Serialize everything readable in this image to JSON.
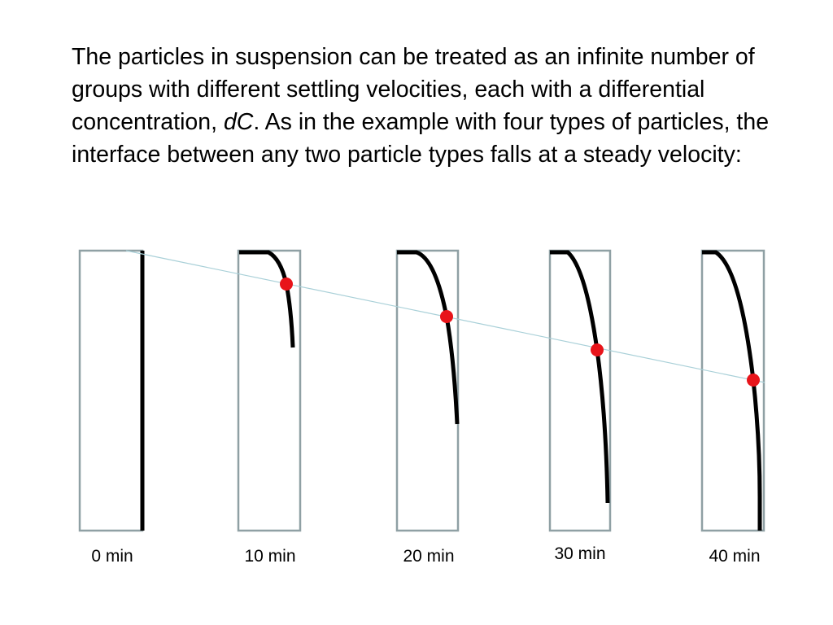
{
  "body": {
    "text_before": "The particles in suspension can be treated as an infinite number of groups with different settling velocities, each with a differential concentration, ",
    "italic": "dC",
    "text_after": ". As in the example with four types of particles, the interface between any two particle types falls at a steady velocity:"
  },
  "labels": [
    "0 min",
    "10 min",
    "20 min",
    "30 min",
    "40 min"
  ]
}
